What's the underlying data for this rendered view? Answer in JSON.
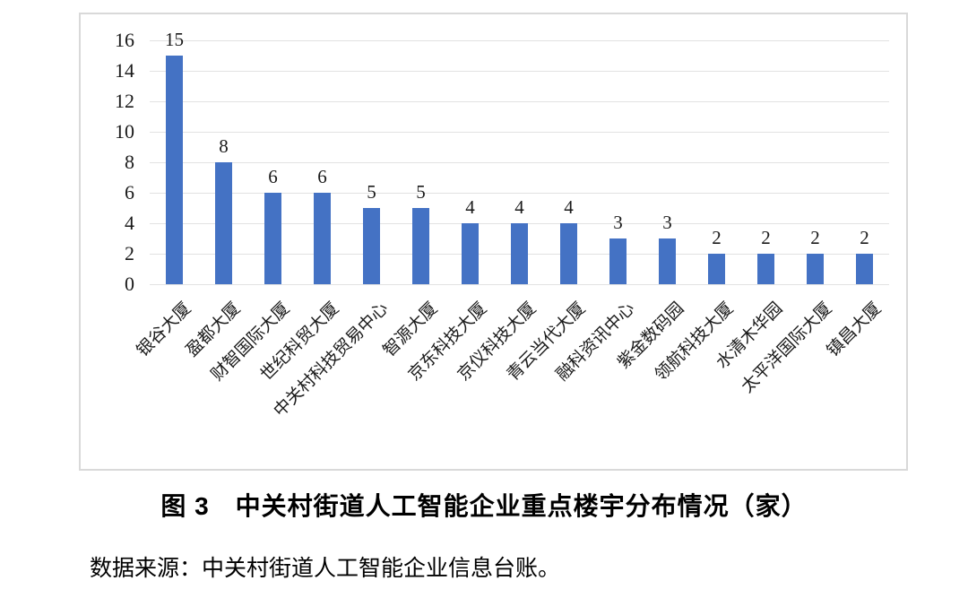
{
  "chart_data": {
    "type": "bar",
    "categories": [
      "银谷大厦",
      "盈都大厦",
      "财智国际大厦",
      "世纪科贸大厦",
      "中关村科技贸易中心",
      "智源大厦",
      "京东科技大厦",
      "京仪科技大厦",
      "青云当代大厦",
      "融科资讯中心",
      "紫金数码园",
      "领航科技大厦",
      "水清木华园",
      "太平洋国际大厦",
      "镇昌大厦"
    ],
    "values": [
      15,
      8,
      6,
      6,
      5,
      5,
      4,
      4,
      4,
      3,
      3,
      2,
      2,
      2,
      2
    ],
    "title": "图 3　中关村街道人工智能企业重点楼宇分布情况（家）",
    "xlabel": "",
    "ylabel": "",
    "ylim": [
      0,
      16
    ],
    "ytick_step": 2,
    "yticks": [
      0,
      2,
      4,
      6,
      8,
      10,
      12,
      14,
      16
    ],
    "grid": true,
    "legend_position": "none",
    "bar_color": "#4472C4",
    "gridline_color": "#e2e2e2",
    "frame_border_color": "#d9d9d9",
    "data_labels": true
  },
  "figure": {
    "caption": "图 3　中关村街道人工智能企业重点楼宇分布情况（家）",
    "source_note": "数据来源：中关村街道人工智能企业信息台账。"
  }
}
